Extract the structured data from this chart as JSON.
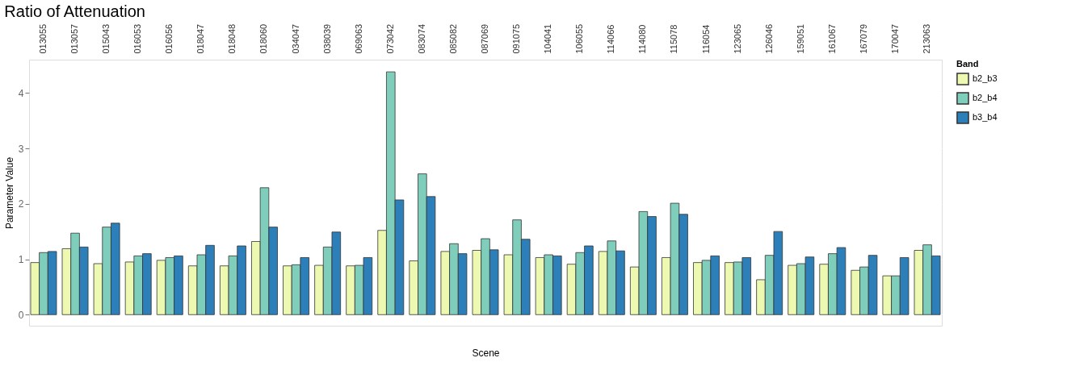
{
  "chart_data": {
    "type": "bar",
    "title": "Ratio of Attenuation",
    "xlabel": "Scene",
    "ylabel": "Parameter Value",
    "legend_title": "Band",
    "legend": "right",
    "grid": "y",
    "categories": [
      "013055",
      "013057",
      "015043",
      "016053",
      "016056",
      "018047",
      "018048",
      "018060",
      "034047",
      "038039",
      "069063",
      "073042",
      "083074",
      "085082",
      "087069",
      "091075",
      "104041",
      "106055",
      "114066",
      "114080",
      "115078",
      "116054",
      "123065",
      "126046",
      "159051",
      "161067",
      "167079",
      "170047",
      "213063"
    ],
    "series": [
      {
        "name": "b2_b3",
        "color": "#edf8b1",
        "values": [
          0.94,
          1.19,
          0.92,
          0.95,
          0.98,
          0.88,
          0.88,
          1.32,
          0.88,
          0.89,
          0.88,
          1.52,
          0.97,
          1.14,
          1.16,
          1.08,
          1.03,
          0.91,
          1.14,
          0.86,
          1.03,
          0.94,
          0.94,
          0.63,
          0.89,
          0.91,
          0.8,
          0.7,
          1.16
        ]
      },
      {
        "name": "b2_b4",
        "color": "#7fcdbb",
        "values": [
          1.12,
          1.47,
          1.58,
          1.06,
          1.03,
          1.08,
          1.06,
          2.29,
          0.9,
          1.22,
          0.89,
          4.38,
          2.54,
          1.28,
          1.37,
          1.71,
          1.08,
          1.12,
          1.33,
          1.86,
          2.01,
          0.98,
          0.95,
          1.07,
          0.92,
          1.1,
          0.86,
          0.7,
          1.26
        ]
      },
      {
        "name": "b3_b4",
        "color": "#2c7fb8",
        "values": [
          1.14,
          1.22,
          1.65,
          1.1,
          1.06,
          1.25,
          1.24,
          1.58,
          1.03,
          1.49,
          1.03,
          2.07,
          2.13,
          1.1,
          1.17,
          1.36,
          1.06,
          1.24,
          1.15,
          1.77,
          1.81,
          1.06,
          1.03,
          1.5,
          1.04,
          1.21,
          1.07,
          1.03,
          1.06
        ]
      }
    ],
    "ylim": [
      -0.2,
      4.6
    ],
    "yticks": [
      0,
      1,
      2,
      3,
      4
    ]
  }
}
